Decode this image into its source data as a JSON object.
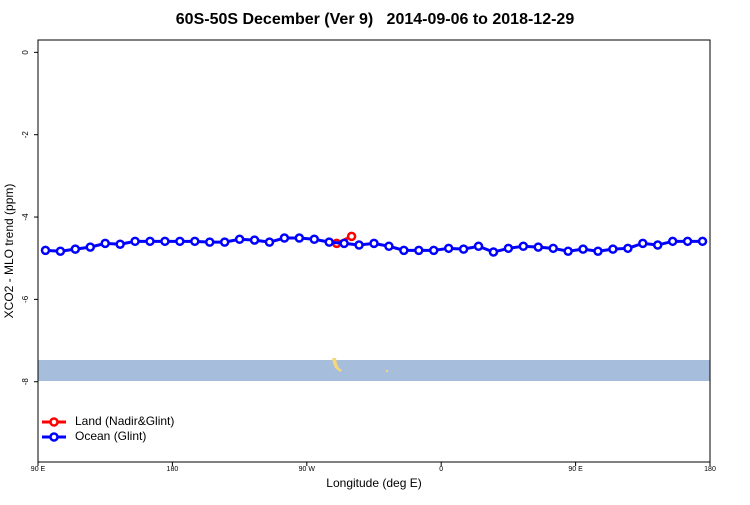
{
  "chart_data": {
    "type": "line",
    "title": "60S-50S December (Ver 9)   2014-09-06 to 2018-12-29",
    "x_label": "Longitude (deg E)",
    "y_label": "XCO2 - MLO trend (ppm)",
    "xlim": [
      90,
      540
    ],
    "ylim": [
      -9.95,
      0.3
    ],
    "xticks": [
      {
        "value": 90,
        "label": "90 E"
      },
      {
        "value": 180,
        "label": "180"
      },
      {
        "value": 270,
        "label": "90 W"
      },
      {
        "value": 360,
        "label": "0"
      },
      {
        "value": 450,
        "label": "90 E"
      },
      {
        "value": 540,
        "label": "180"
      }
    ],
    "yticks": [
      0,
      -2,
      -4,
      -6,
      -8
    ],
    "legend": "bottomleft",
    "series": [
      {
        "name": "Land (Nadir&Glint)",
        "color": "#ff0000",
        "x": [
          290,
          300
        ],
        "values": [
          -4.64,
          -4.47
        ]
      },
      {
        "name": "Ocean (Glint)",
        "color": "#0000ff",
        "x": [
          95,
          105,
          115,
          125,
          135,
          145,
          155,
          165,
          175,
          185,
          195,
          205,
          215,
          225,
          235,
          245,
          255,
          265,
          275,
          285,
          295,
          305,
          315,
          325,
          335,
          345,
          355,
          365,
          375,
          385,
          395,
          405,
          415,
          425,
          435,
          445,
          455,
          465,
          475,
          485,
          495,
          505,
          515,
          525,
          535
        ],
        "values": [
          -4.81,
          -4.83,
          -4.78,
          -4.73,
          -4.64,
          -4.66,
          -4.59,
          -4.59,
          -4.59,
          -4.59,
          -4.59,
          -4.61,
          -4.61,
          -4.54,
          -4.56,
          -4.61,
          -4.51,
          -4.51,
          -4.54,
          -4.61,
          -4.64,
          -4.68,
          -4.64,
          -4.71,
          -4.81,
          -4.81,
          -4.81,
          -4.76,
          -4.78,
          -4.71,
          -4.85,
          -4.76,
          -4.71,
          -4.73,
          -4.76,
          -4.83,
          -4.78,
          -4.83,
          -4.78,
          -4.76,
          -4.64,
          -4.68,
          -4.59,
          -4.59,
          -4.59
        ]
      }
    ]
  }
}
